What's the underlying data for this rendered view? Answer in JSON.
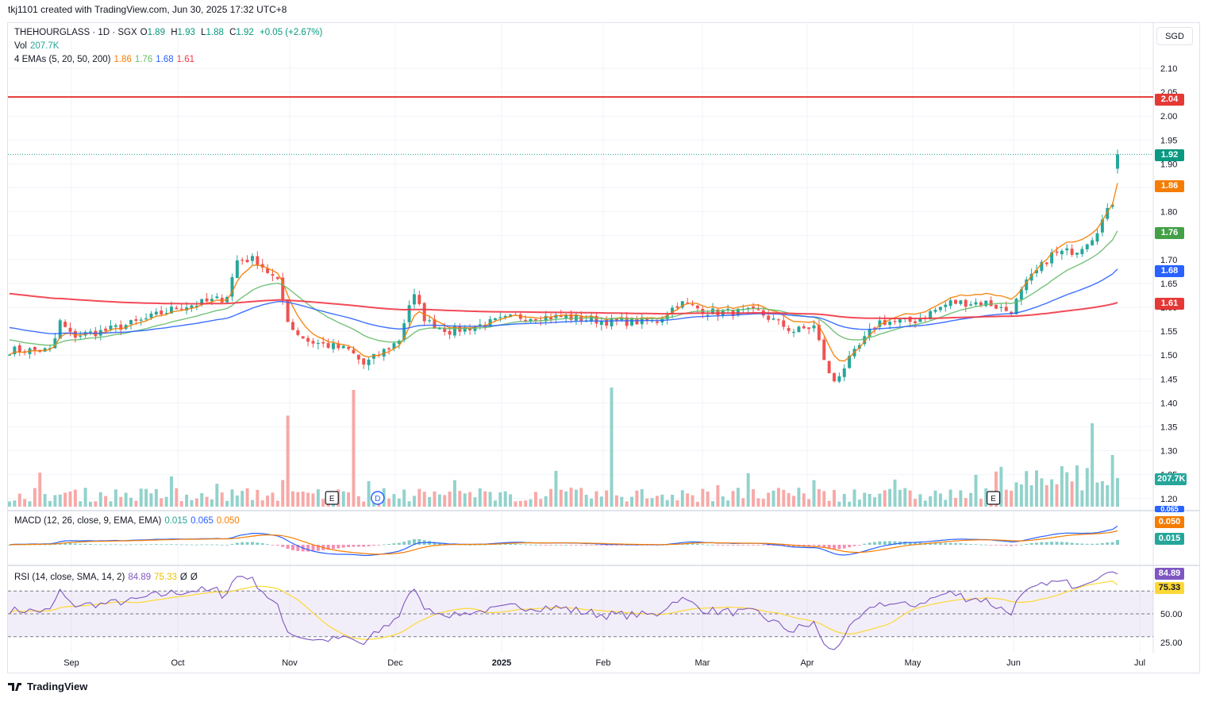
{
  "header": {
    "attribution": "tkj1101 created with TradingView.com, Jun 30, 2025 17:32 UTC+8"
  },
  "legend": {
    "symbol": "THEHOURGLASS · 1D · SGX",
    "o_label": "O",
    "o": "1.89",
    "h_label": "H",
    "h": "1.93",
    "l_label": "L",
    "l": "1.88",
    "c_label": "C",
    "c": "1.92",
    "change": "+0.05 (+2.67%)",
    "vol_label": "Vol",
    "vol": "207.7K",
    "ema_label": "4 EMAs (5, 20, 50, 200)",
    "ema5": "1.86",
    "ema20": "1.76",
    "ema50": "1.68",
    "ema200": "1.61",
    "macd_label": "MACD (12, 26, close, 9, EMA, EMA)",
    "macd_hist": "0.015",
    "macd_line": "0.065",
    "macd_signal": "0.050",
    "rsi_label": "RSI (14, close, SMA, 14, 2)",
    "rsi": "84.89",
    "rsi_ma": "75.33",
    "rsi_extra1": "Ø",
    "rsi_extra2": "Ø"
  },
  "currency": "SGD",
  "price_tags": {
    "resistance": "2.04",
    "last": "1.92",
    "ema5": "1.86",
    "ema20": "1.76",
    "ema50": "1.68",
    "ema200": "1.61",
    "volume": "207.7K",
    "macd_top": "0.065",
    "macd_signal": "0.050",
    "macd_hist": "0.015",
    "rsi": "84.89",
    "rsi_ma": "75.33"
  },
  "events": {
    "earnings_1": "E",
    "dividend": "D",
    "earnings_2": "E"
  },
  "brand": "TradingView",
  "colors": {
    "up": "#26a69a",
    "down": "#ef5350",
    "ema5": "#f57c00",
    "ema20": "#66bb6a",
    "ema50": "#2962ff",
    "ema200": "#f23645",
    "resistance": "#e53935",
    "rsi": "#7e57c2",
    "rsi_ma": "#fdd835",
    "macd": "#2962ff",
    "signal": "#f57c00"
  },
  "chart_data": [
    {
      "type": "candlestick",
      "title": "THEHOURGLASS · 1D · SGX",
      "x_ticks": [
        "Sep",
        "Oct",
        "Nov",
        "Dec",
        "2025",
        "Feb",
        "Mar",
        "Apr",
        "May",
        "Jun",
        "Jul"
      ],
      "y_ticks": [
        "1.20",
        "1.25",
        "1.30",
        "1.35",
        "1.40",
        "1.45",
        "1.50",
        "1.55",
        "1.60",
        "1.65",
        "1.70",
        "1.75",
        "1.80",
        "1.85",
        "1.90",
        "1.95",
        "2.00",
        "2.05",
        "2.10"
      ],
      "ylim": [
        1.18,
        2.12
      ],
      "resistance_level": 2.04,
      "close_anchors": [
        {
          "x": "Aug 19",
          "y": 1.51
        },
        {
          "x": "Aug 24",
          "y": 1.57
        },
        {
          "x": "Aug 31",
          "y": 1.54
        },
        {
          "x": "Sep 10",
          "y": 1.55
        },
        {
          "x": "Sep 20",
          "y": 1.57
        },
        {
          "x": "Oct 1",
          "y": 1.6
        },
        {
          "x": "Oct 8",
          "y": 1.61
        },
        {
          "x": "Oct 14",
          "y": 1.62
        },
        {
          "x": "Oct 17",
          "y": 1.7
        },
        {
          "x": "Oct 22",
          "y": 1.7
        },
        {
          "x": "Oct 28",
          "y": 1.65
        },
        {
          "x": "Nov 1",
          "y": 1.56
        },
        {
          "x": "Nov 6",
          "y": 1.53
        },
        {
          "x": "Nov 12",
          "y": 1.52
        },
        {
          "x": "Nov 18",
          "y": 1.51
        },
        {
          "x": "Nov 22",
          "y": 1.48
        },
        {
          "x": "Dec 2",
          "y": 1.53
        },
        {
          "x": "Dec 6",
          "y": 1.63
        },
        {
          "x": "Dec 10",
          "y": 1.57
        },
        {
          "x": "Dec 17",
          "y": 1.55
        },
        {
          "x": "Dec 24",
          "y": 1.56
        },
        {
          "x": "Jan 6",
          "y": 1.58
        },
        {
          "x": "Jan 20",
          "y": 1.58
        },
        {
          "x": "Feb 3",
          "y": 1.57
        },
        {
          "x": "Feb 17",
          "y": 1.57
        },
        {
          "x": "Feb 24",
          "y": 1.61
        },
        {
          "x": "Mar 3",
          "y": 1.59
        },
        {
          "x": "Mar 17",
          "y": 1.59
        },
        {
          "x": "Mar 27",
          "y": 1.55
        },
        {
          "x": "Apr 3",
          "y": 1.56
        },
        {
          "x": "Apr 8",
          "y": 1.44
        },
        {
          "x": "Apr 14",
          "y": 1.5
        },
        {
          "x": "Apr 21",
          "y": 1.57
        },
        {
          "x": "May 1",
          "y": 1.57
        },
        {
          "x": "May 12",
          "y": 1.61
        },
        {
          "x": "May 23",
          "y": 1.61
        },
        {
          "x": "May 30",
          "y": 1.59
        },
        {
          "x": "Jun 4",
          "y": 1.65
        },
        {
          "x": "Jun 10",
          "y": 1.71
        },
        {
          "x": "Jun 16",
          "y": 1.72
        },
        {
          "x": "Jun 20",
          "y": 1.75
        },
        {
          "x": "Jun 24",
          "y": 1.81
        },
        {
          "x": "Jun 27",
          "y": 1.87
        },
        {
          "x": "Jun 30",
          "y": 1.92
        }
      ],
      "last": {
        "open": 1.89,
        "high": 1.93,
        "low": 1.88,
        "close": 1.92
      },
      "series": [
        {
          "name": "EMA 5",
          "last": 1.86
        },
        {
          "name": "EMA 20",
          "last": 1.76
        },
        {
          "name": "EMA 50",
          "last": 1.68
        },
        {
          "name": "EMA 200",
          "last": 1.61
        }
      ]
    },
    {
      "type": "bar",
      "title": "Vol",
      "last": "207.7K",
      "spikes": [
        {
          "x": "Oct 30",
          "relative": 0.78
        },
        {
          "x": "Nov 19",
          "relative": 1.0
        },
        {
          "x": "Feb 3",
          "relative": 1.02
        }
      ]
    },
    {
      "type": "line",
      "title": "MACD (12, 26, close, 9, EMA, EMA)",
      "last": {
        "histogram": 0.015,
        "macd": 0.065,
        "signal": 0.05
      }
    },
    {
      "type": "line",
      "title": "RSI (14, close, SMA, 14, 2)",
      "y_ticks": [
        "25.00",
        "50.00"
      ],
      "ylim": [
        15,
        95
      ],
      "bands": [
        30,
        70
      ],
      "last": {
        "rsi": 84.89,
        "rsi_ma": 75.33
      }
    }
  ]
}
